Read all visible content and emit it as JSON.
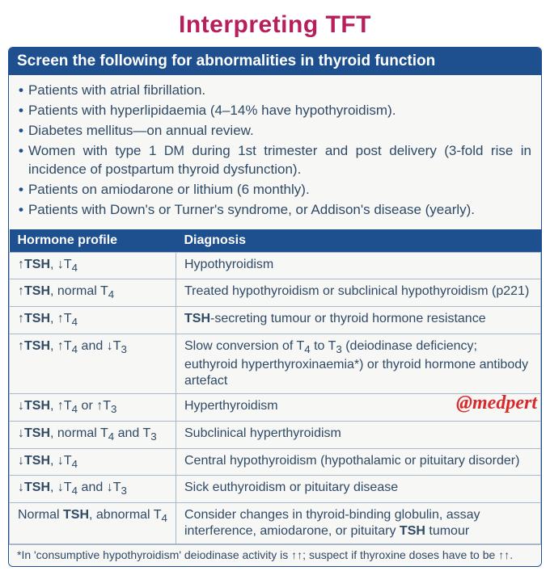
{
  "title": "Interpreting TFT",
  "screen_header": "Screen the following for abnormalities in thyroid function",
  "bullets": [
    "Patients with atrial fibrillation.",
    "Patients with hyperlipidaemia (4–14% have hypothyroidism).",
    "Diabetes mellitus—on annual review.",
    "Women with type 1 DM during 1st trimester and post delivery (3-fold rise in incidence of postpartum thyroid dysfunction).",
    "Patients on amiodarone or lithium (6 monthly).",
    "Patients with Down's or Turner's syndrome, or Addison's disease (yearly)."
  ],
  "table": {
    "columns": [
      "Hormone profile",
      "Diagnosis"
    ],
    "rows": [
      [
        "↑TSH, ↓T₄",
        "Hypothyroidism"
      ],
      [
        "↑TSH, normal T₄",
        "Treated hypothyroidism or subclinical hypothyroidism (p221)"
      ],
      [
        "↑TSH, ↑T₄",
        "TSH-secreting tumour or thyroid hormone resistance"
      ],
      [
        "↑TSH, ↑T₄ and ↓T₃",
        "Slow conversion of T₄ to T₃ (deiodinase deficiency; euthyroid hyperthyroxinaemia*) or thyroid hormone antibody artefact"
      ],
      [
        "↓TSH, ↑T₄ or ↑T₃",
        "Hyperthyroidism"
      ],
      [
        "↓TSH, normal T₄ and T₃",
        "Subclinical hyperthyroidism"
      ],
      [
        "↓TSH, ↓T₄",
        "Central hypothyroidism (hypothalamic or pituitary disorder)"
      ],
      [
        "↓TSH, ↓T₄ and ↓T₃",
        "Sick euthyroidism or pituitary disease"
      ],
      [
        "Normal TSH, abnormal T₄",
        "Consider changes in thyroid-binding globulin, assay interference, amiodarone, or pituitary TSH tumour"
      ]
    ]
  },
  "watermark": "@medpert",
  "footnote": "*In 'consumptive hypothyroidism' deiodinase activity is ↑↑; suspect if thyroxine doses have to be ↑↑.",
  "colors": {
    "title": "#b81e5b",
    "header_bg": "#1e4f8f",
    "body_text": "#2f4a66",
    "border": "#a9b8c9",
    "card_bg": "#f7f7f5",
    "watermark": "#d82a2a"
  }
}
